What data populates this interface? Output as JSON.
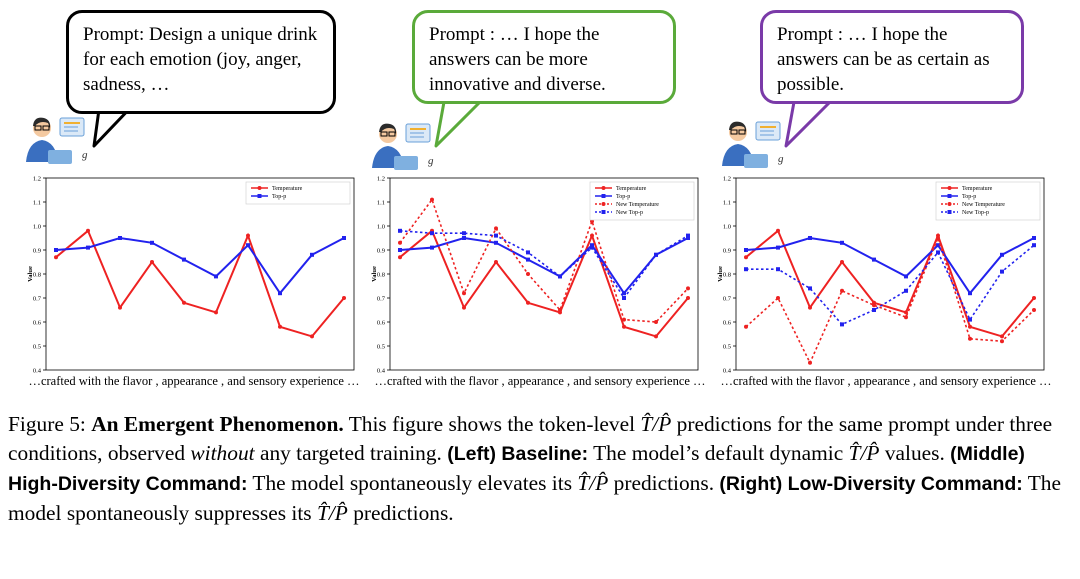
{
  "prompts": [
    {
      "text": "Prompt: Design a unique drink for each emotion (joy, anger, sadness, …",
      "border": "#000000"
    },
    {
      "text": "Prompt : … I hope the answers can be more innovative and diverse.",
      "border": "#5aaa3a"
    },
    {
      "text": "Prompt : … I hope the answers can be as certain as possible.",
      "border": "#7a3aa8"
    }
  ],
  "axis_caption": "…crafted with the flavor , appearance , and sensory experience …",
  "legend": {
    "temperature": "Temperature",
    "top_p": "Top-p",
    "new_temperature": "New Temperature",
    "new_top_p": "New Top-p"
  },
  "colors": {
    "temperature": "#ee2222",
    "top_p": "#2222ee"
  },
  "caption": {
    "fig_label": "Figure 5:",
    "title": "An Emergent Phenomenon.",
    "part1": "This figure shows the token-level",
    "math": "T̂/P̂",
    "part2": "predictions for the same prompt under three conditions, observed",
    "without": "without",
    "part3": "any targeted training.",
    "left_label": "(Left) Baseline:",
    "left_text": "The model’s default dynamic",
    "left_text2": "values.",
    "middle_label": "(Middle) High-Diversity Command:",
    "middle_text": "The model spontaneously elevates its",
    "middle_text2": "predictions.",
    "right_label": "(Right) Low-Diversity Command:",
    "right_text": "The model spontaneously suppresses its",
    "right_text2": "predictions."
  },
  "chart_data": [
    {
      "type": "line",
      "ylabel": "Value",
      "ylim": [
        0.4,
        1.2
      ],
      "yticks": [
        "0.4",
        "0.5",
        "0.6",
        "0.7",
        "0.8",
        "0.9",
        "1.0",
        "1.1",
        "1.2"
      ],
      "legend_position": "top-right",
      "grid": false,
      "series": [
        {
          "name": "Temperature",
          "color": "#ee2222",
          "dashed": false,
          "values": [
            0.87,
            0.98,
            0.66,
            0.85,
            0.68,
            0.64,
            0.96,
            0.58,
            0.54,
            0.7
          ]
        },
        {
          "name": "Top-p",
          "color": "#2222ee",
          "dashed": false,
          "values": [
            0.9,
            0.91,
            0.95,
            0.93,
            0.86,
            0.79,
            0.92,
            0.72,
            0.88,
            0.95
          ]
        }
      ]
    },
    {
      "type": "line",
      "ylabel": "Value",
      "ylim": [
        0.4,
        1.2
      ],
      "yticks": [
        "0.4",
        "0.5",
        "0.6",
        "0.7",
        "0.8",
        "0.9",
        "1.0",
        "1.1",
        "1.2"
      ],
      "legend_position": "top-right",
      "grid": false,
      "series": [
        {
          "name": "Temperature",
          "color": "#ee2222",
          "dashed": false,
          "values": [
            0.87,
            0.98,
            0.66,
            0.85,
            0.68,
            0.64,
            0.96,
            0.58,
            0.54,
            0.7
          ]
        },
        {
          "name": "Top-p",
          "color": "#2222ee",
          "dashed": false,
          "values": [
            0.9,
            0.91,
            0.95,
            0.93,
            0.86,
            0.79,
            0.92,
            0.72,
            0.88,
            0.95
          ]
        },
        {
          "name": "New Temperature",
          "color": "#ee2222",
          "dashed": true,
          "values": [
            0.93,
            1.11,
            0.72,
            0.99,
            0.8,
            0.65,
            1.02,
            0.61,
            0.6,
            0.74
          ]
        },
        {
          "name": "New Top-p",
          "color": "#2222ee",
          "dashed": true,
          "values": [
            0.98,
            0.97,
            0.97,
            0.96,
            0.89,
            0.79,
            0.91,
            0.7,
            0.88,
            0.96
          ]
        }
      ]
    },
    {
      "type": "line",
      "ylabel": "Value",
      "ylim": [
        0.4,
        1.2
      ],
      "yticks": [
        "0.4",
        "0.5",
        "0.6",
        "0.7",
        "0.8",
        "0.9",
        "1.0",
        "1.1",
        "1.2"
      ],
      "legend_position": "top-right",
      "grid": false,
      "series": [
        {
          "name": "Temperature",
          "color": "#ee2222",
          "dashed": false,
          "values": [
            0.87,
            0.98,
            0.66,
            0.85,
            0.68,
            0.64,
            0.96,
            0.58,
            0.54,
            0.7
          ]
        },
        {
          "name": "Top-p",
          "color": "#2222ee",
          "dashed": false,
          "values": [
            0.9,
            0.91,
            0.95,
            0.93,
            0.86,
            0.79,
            0.92,
            0.72,
            0.88,
            0.95
          ]
        },
        {
          "name": "New Temperature",
          "color": "#ee2222",
          "dashed": true,
          "values": [
            0.58,
            0.7,
            0.43,
            0.73,
            0.67,
            0.62,
            0.95,
            0.53,
            0.52,
            0.65
          ]
        },
        {
          "name": "New Top-p",
          "color": "#2222ee",
          "dashed": true,
          "values": [
            0.82,
            0.82,
            0.74,
            0.59,
            0.65,
            0.73,
            0.89,
            0.61,
            0.81,
            0.92
          ]
        }
      ]
    }
  ]
}
